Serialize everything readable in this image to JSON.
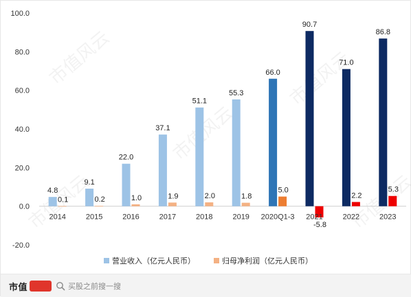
{
  "chart_data": {
    "type": "bar",
    "categories": [
      "2014",
      "2015",
      "2016",
      "2017",
      "2018",
      "2019",
      "2020Q1-3",
      "2021",
      "2022",
      "2023"
    ],
    "series": [
      {
        "name": "营业收入（亿元人民币）",
        "values": [
          4.8,
          9.1,
          22.0,
          37.1,
          51.1,
          55.3,
          66.0,
          90.7,
          71.0,
          86.8
        ],
        "labels": [
          "4.8",
          "9.1",
          "22.0",
          "37.1",
          "51.1",
          "55.3",
          "66.0",
          "90.7",
          "71.0",
          "86.8"
        ],
        "colors": [
          "#9dc3e6",
          "#9dc3e6",
          "#9dc3e6",
          "#9dc3e6",
          "#9dc3e6",
          "#9dc3e6",
          "#2e75b6",
          "#0d2a62",
          "#0d2a62",
          "#0d2a62"
        ]
      },
      {
        "name": "归母净利润（亿元人民币）",
        "values": [
          0.1,
          0.2,
          1.0,
          1.9,
          2.0,
          1.8,
          5.0,
          -5.8,
          2.2,
          5.3
        ],
        "labels": [
          "0.1",
          "0.2",
          "1.0",
          "1.9",
          "2.0",
          "1.8",
          "5.0",
          "-5.8",
          "2.2",
          "5.3"
        ],
        "colors": [
          "#f4b183",
          "#f4b183",
          "#f4b183",
          "#f4b183",
          "#f4b183",
          "#f4b183",
          "#ed7d31",
          "#ee0000",
          "#ee0000",
          "#ee0000"
        ]
      }
    ],
    "legend_colors": [
      "#9dc3e6",
      "#f4b183"
    ],
    "ylim": [
      -20,
      100
    ],
    "yticks": [
      -20,
      0,
      20,
      40,
      60,
      80,
      100
    ],
    "ytick_labels": [
      "-20.0",
      "0.0",
      "20.0",
      "40.0",
      "60.0",
      "80.0",
      "100.0"
    ],
    "grid": false,
    "legend_position": "bottom",
    "title": "",
    "xlabel": "",
    "ylabel": ""
  },
  "footer": {
    "brand": "市值",
    "brand_logo_text": "风云",
    "search_placeholder": "买股之前搜一搜"
  },
  "watermark": "市值风云"
}
